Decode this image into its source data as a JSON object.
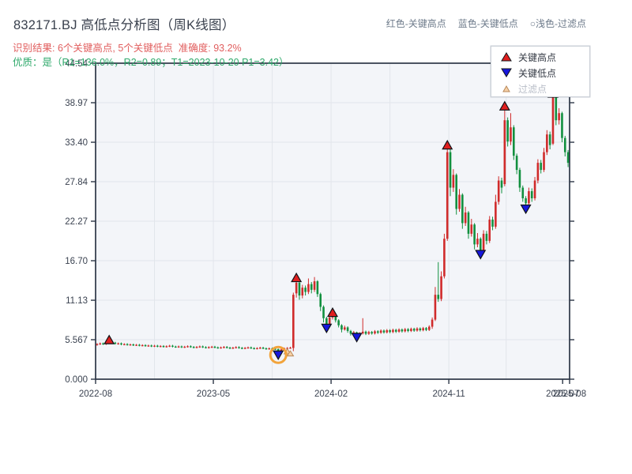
{
  "header": {
    "title": "832171.BJ 高低点分析图（周K线图）",
    "result_line": "识别结果: 6个关键高点, 5个关键低点  准确度: 93.2%",
    "quality_line": "优质：是（R1=136.0%，R2=0.89；T1=2023-10-20 P1=3.42）",
    "top_legend": [
      "红色-关键高点",
      "蓝色-关键低点",
      "○浅色-过滤点"
    ]
  },
  "legend_box": {
    "high_label": "关键高点",
    "low_label": "关键低点",
    "filter_label": "过滤点"
  },
  "colors": {
    "up": "#d02b2b",
    "down": "#12903f",
    "spine": "#2d3747",
    "grid": "#e2e5eb",
    "plot_bg": "#f3f5f9",
    "tick_text": "#3a4250",
    "marker_high": "#e01f1f",
    "marker_low": "#1717dc",
    "marker_edge": "#101318",
    "filter_fill": "#f6d0a6",
    "filter_edge": "#b8895a",
    "highlight_circle": "#f2a43c"
  },
  "chart_data": {
    "type": "candlestick",
    "period": "weekly",
    "title": "832171.BJ 高低点分析图（周K线图）",
    "ylim": [
      0,
      44.54
    ],
    "grid": true,
    "yticks": [
      {
        "label": "0.000",
        "value": 0
      },
      {
        "label": "5.567",
        "value": 5.567
      },
      {
        "label": "11.13",
        "value": 11.13
      },
      {
        "label": "16.70",
        "value": 16.7
      },
      {
        "label": "22.27",
        "value": 22.27
      },
      {
        "label": "27.84",
        "value": 27.84
      },
      {
        "label": "33.40",
        "value": 33.4
      },
      {
        "label": "38.97",
        "value": 38.97
      },
      {
        "label": "44.54",
        "value": 44.54
      }
    ],
    "xticks": [
      {
        "label": "2022-08",
        "week": -0.5
      },
      {
        "label": "2023-05",
        "week": 38.5
      },
      {
        "label": "2024-02",
        "week": 77.5
      },
      {
        "label": "2024-11",
        "week": 116.5
      },
      {
        "label": "2025-07",
        "week": 154.2
      },
      {
        "label": "2025-08",
        "week": 156.5
      }
    ],
    "xgrid_weeks": [
      19,
      38.5,
      58,
      77.5,
      97,
      116.5,
      135.5
    ],
    "key_highs": [
      {
        "week": 4,
        "price": 5.55
      },
      {
        "week": 66,
        "price": 14.3
      },
      {
        "week": 78,
        "price": 9.4
      },
      {
        "week": 116,
        "price": 33.0
      },
      {
        "week": 135,
        "price": 38.5
      },
      {
        "week": 151,
        "price": 40.3
      }
    ],
    "key_lows": [
      {
        "week": 60,
        "price": 3.42,
        "circled": true
      },
      {
        "week": 76,
        "price": 7.2
      },
      {
        "week": 86,
        "price": 5.9
      },
      {
        "week": 127,
        "price": 17.6
      },
      {
        "week": 142,
        "price": 24.0
      }
    ],
    "filtered_points": [
      {
        "week": 63,
        "price": 3.9
      },
      {
        "week": 64,
        "price": 3.6
      }
    ],
    "candles": [
      [
        4.85,
        5.07,
        4.73,
        4.95
      ],
      [
        4.95,
        5.17,
        4.83,
        5.05
      ],
      [
        5.05,
        5.17,
        4.83,
        4.95
      ],
      [
        4.95,
        5.22,
        4.83,
        5.1
      ],
      [
        5.1,
        5.55,
        4.98,
        5.3
      ],
      [
        5.3,
        5.42,
        5.03,
        5.15
      ],
      [
        5.15,
        5.27,
        4.88,
        5.0
      ],
      [
        5.0,
        5.17,
        4.88,
        5.05
      ],
      [
        5.05,
        5.17,
        4.78,
        4.9
      ],
      [
        4.9,
        5.07,
        4.78,
        4.95
      ],
      [
        4.95,
        5.07,
        4.73,
        4.85
      ],
      [
        4.85,
        5.02,
        4.73,
        4.9
      ],
      [
        4.9,
        5.02,
        4.68,
        4.8
      ],
      [
        4.8,
        4.97,
        4.68,
        4.85
      ],
      [
        4.85,
        4.97,
        4.63,
        4.75
      ],
      [
        4.75,
        4.92,
        4.63,
        4.8
      ],
      [
        4.8,
        4.92,
        4.58,
        4.7
      ],
      [
        4.7,
        4.87,
        4.58,
        4.75
      ],
      [
        4.75,
        4.87,
        4.53,
        4.65
      ],
      [
        4.65,
        4.84,
        4.53,
        4.72
      ],
      [
        4.72,
        4.84,
        4.5,
        4.62
      ],
      [
        4.62,
        4.8,
        4.5,
        4.68
      ],
      [
        4.68,
        4.8,
        4.46,
        4.58
      ],
      [
        4.58,
        4.77,
        4.46,
        4.65
      ],
      [
        4.65,
        4.84,
        4.53,
        4.72
      ],
      [
        4.72,
        4.84,
        4.48,
        4.6
      ],
      [
        4.6,
        4.72,
        4.43,
        4.55
      ],
      [
        4.55,
        4.74,
        4.43,
        4.62
      ],
      [
        4.62,
        4.74,
        4.4,
        4.52
      ],
      [
        4.52,
        4.7,
        4.4,
        4.58
      ],
      [
        4.58,
        4.77,
        4.46,
        4.65
      ],
      [
        4.65,
        4.77,
        4.43,
        4.55
      ],
      [
        4.55,
        4.67,
        4.36,
        4.48
      ],
      [
        4.48,
        4.67,
        4.36,
        4.55
      ],
      [
        4.55,
        4.74,
        4.43,
        4.62
      ],
      [
        4.62,
        4.74,
        4.4,
        4.52
      ],
      [
        4.52,
        4.64,
        4.33,
        4.45
      ],
      [
        4.45,
        4.64,
        4.33,
        4.52
      ],
      [
        4.52,
        4.7,
        4.4,
        4.58
      ],
      [
        4.58,
        4.7,
        4.36,
        4.48
      ],
      [
        4.48,
        4.6,
        4.3,
        4.42
      ],
      [
        4.42,
        4.6,
        4.3,
        4.48
      ],
      [
        4.48,
        4.67,
        4.36,
        4.55
      ],
      [
        4.55,
        4.67,
        4.33,
        4.45
      ],
      [
        4.45,
        4.57,
        4.26,
        4.38
      ],
      [
        4.38,
        4.57,
        4.26,
        4.45
      ],
      [
        4.45,
        4.64,
        4.33,
        4.52
      ],
      [
        4.52,
        4.64,
        4.3,
        4.42
      ],
      [
        4.42,
        4.54,
        4.23,
        4.35
      ],
      [
        4.35,
        4.54,
        4.23,
        4.42
      ],
      [
        4.42,
        4.6,
        4.3,
        4.48
      ],
      [
        4.48,
        4.6,
        4.26,
        4.38
      ],
      [
        4.38,
        4.5,
        4.2,
        4.32
      ],
      [
        4.32,
        4.5,
        4.2,
        4.38
      ],
      [
        4.38,
        4.57,
        4.26,
        4.45
      ],
      [
        4.45,
        4.57,
        4.23,
        4.35
      ],
      [
        4.35,
        4.47,
        4.16,
        4.28
      ],
      [
        4.28,
        4.47,
        4.16,
        4.35
      ],
      [
        4.35,
        4.47,
        4.18,
        4.3
      ],
      [
        4.3,
        4.42,
        4.13,
        4.25
      ],
      [
        4.25,
        4.3,
        3.42,
        3.95
      ],
      [
        3.95,
        4.32,
        3.83,
        4.2
      ],
      [
        4.2,
        4.47,
        4.08,
        4.35
      ],
      [
        4.35,
        4.52,
        4.23,
        4.4
      ],
      [
        4.4,
        4.57,
        4.28,
        4.45
      ],
      [
        4.4,
        12.2,
        3.95,
        11.9
      ],
      [
        12.1,
        14.3,
        11.5,
        13.6
      ],
      [
        13.6,
        13.8,
        11.2,
        11.8
      ],
      [
        11.8,
        13.3,
        11.4,
        12.9
      ],
      [
        12.9,
        13.2,
        11.8,
        12.3
      ],
      [
        12.3,
        14.2,
        12.0,
        13.4
      ],
      [
        13.4,
        13.7,
        12.1,
        12.6
      ],
      [
        12.6,
        14.4,
        12.3,
        13.8
      ],
      [
        13.8,
        13.95,
        11.6,
        12.0
      ],
      [
        12.0,
        12.2,
        9.6,
        10.2
      ],
      [
        10.2,
        10.4,
        8.0,
        8.6
      ],
      [
        8.6,
        8.8,
        7.2,
        7.8
      ],
      [
        7.8,
        9.0,
        7.6,
        8.7
      ],
      [
        8.7,
        9.4,
        8.4,
        9.0
      ],
      [
        9.0,
        9.15,
        8.0,
        8.3
      ],
      [
        8.3,
        8.45,
        7.3,
        7.6
      ],
      [
        7.6,
        7.75,
        6.6,
        7.0
      ],
      [
        7.0,
        7.55,
        6.85,
        7.3
      ],
      [
        7.3,
        7.45,
        6.55,
        6.8
      ],
      [
        6.8,
        6.95,
        6.15,
        6.4
      ],
      [
        6.4,
        6.8,
        6.25,
        6.6
      ],
      [
        6.6,
        6.7,
        5.9,
        6.2
      ],
      [
        6.2,
        6.62,
        6.05,
        6.45
      ],
      [
        6.45,
        8.6,
        6.3,
        6.7
      ],
      [
        6.7,
        6.85,
        6.22,
        6.4
      ],
      [
        6.4,
        6.82,
        6.25,
        6.65
      ],
      [
        6.65,
        6.8,
        6.28,
        6.45
      ],
      [
        6.45,
        6.92,
        6.3,
        6.75
      ],
      [
        6.75,
        6.9,
        6.38,
        6.55
      ],
      [
        6.55,
        7.02,
        6.4,
        6.85
      ],
      [
        6.85,
        7.0,
        6.43,
        6.6
      ],
      [
        6.6,
        7.07,
        6.45,
        6.9
      ],
      [
        6.9,
        7.05,
        6.48,
        6.65
      ],
      [
        6.65,
        7.12,
        6.5,
        6.95
      ],
      [
        6.95,
        7.1,
        6.52,
        6.7
      ],
      [
        6.7,
        7.17,
        6.55,
        7.0
      ],
      [
        7.0,
        7.15,
        6.58,
        6.75
      ],
      [
        6.75,
        7.22,
        6.6,
        7.05
      ],
      [
        7.05,
        7.2,
        6.62,
        6.8
      ],
      [
        6.8,
        7.27,
        6.65,
        7.1
      ],
      [
        7.1,
        7.25,
        6.68,
        6.85
      ],
      [
        6.85,
        7.32,
        6.7,
        7.15
      ],
      [
        7.15,
        7.3,
        6.72,
        6.9
      ],
      [
        6.9,
        7.37,
        6.75,
        7.2
      ],
      [
        7.2,
        7.35,
        6.78,
        6.95
      ],
      [
        6.95,
        7.6,
        6.8,
        7.4
      ],
      [
        7.4,
        8.7,
        7.1,
        8.4
      ],
      [
        8.4,
        13.0,
        8.2,
        11.9
      ],
      [
        11.9,
        16.5,
        10.9,
        11.3
      ],
      [
        11.3,
        15.2,
        11.0,
        14.5
      ],
      [
        14.5,
        20.5,
        14.2,
        19.8
      ],
      [
        19.8,
        33.0,
        19.5,
        32.0
      ],
      [
        32.0,
        32.4,
        25.8,
        27.0
      ],
      [
        27.0,
        29.6,
        26.4,
        28.8
      ],
      [
        28.8,
        29.0,
        23.2,
        24.0
      ],
      [
        24.0,
        26.8,
        23.6,
        26.0
      ],
      [
        26.0,
        26.2,
        21.2,
        22.0
      ],
      [
        22.0,
        24.3,
        21.6,
        23.5
      ],
      [
        23.5,
        23.7,
        19.8,
        20.5
      ],
      [
        20.5,
        22.6,
        20.1,
        21.8
      ],
      [
        21.8,
        22.0,
        18.3,
        19.0
      ],
      [
        19.0,
        20.6,
        18.6,
        19.8
      ],
      [
        19.8,
        20.0,
        17.6,
        18.2
      ],
      [
        18.2,
        21.0,
        18.0,
        20.5
      ],
      [
        20.5,
        20.9,
        19.0,
        19.5
      ],
      [
        19.5,
        23.0,
        19.2,
        22.5
      ],
      [
        22.5,
        22.9,
        21.0,
        21.5
      ],
      [
        21.5,
        26.0,
        21.2,
        25.0
      ],
      [
        25.0,
        28.6,
        24.6,
        28.0
      ],
      [
        28.0,
        28.4,
        26.2,
        27.0
      ],
      [
        27.5,
        38.5,
        27.2,
        36.5
      ],
      [
        36.5,
        36.9,
        32.8,
        33.5
      ],
      [
        33.5,
        37.5,
        33.0,
        35.5
      ],
      [
        35.5,
        35.8,
        30.9,
        31.5
      ],
      [
        31.5,
        31.8,
        28.9,
        29.5
      ],
      [
        29.5,
        29.8,
        26.4,
        27.0
      ],
      [
        27.0,
        27.3,
        25.0,
        25.5
      ],
      [
        25.5,
        25.8,
        24.0,
        24.8
      ],
      [
        24.8,
        27.0,
        24.4,
        26.5
      ],
      [
        26.5,
        26.9,
        25.0,
        25.5
      ],
      [
        25.5,
        28.5,
        25.2,
        28.0
      ],
      [
        28.0,
        31.0,
        27.6,
        30.5
      ],
      [
        30.5,
        30.9,
        29.0,
        29.5
      ],
      [
        29.5,
        32.6,
        29.2,
        32.0
      ],
      [
        32.0,
        35.1,
        31.6,
        34.5
      ],
      [
        34.5,
        34.9,
        32.4,
        33.0
      ],
      [
        33.2,
        40.3,
        33.0,
        39.8
      ],
      [
        39.8,
        40.0,
        35.8,
        36.5
      ],
      [
        36.5,
        38.2,
        35.9,
        37.5
      ],
      [
        37.5,
        37.7,
        33.4,
        34.0
      ],
      [
        34.0,
        34.3,
        31.4,
        32.0
      ],
      [
        32.0,
        32.3,
        29.9,
        30.5
      ]
    ]
  }
}
